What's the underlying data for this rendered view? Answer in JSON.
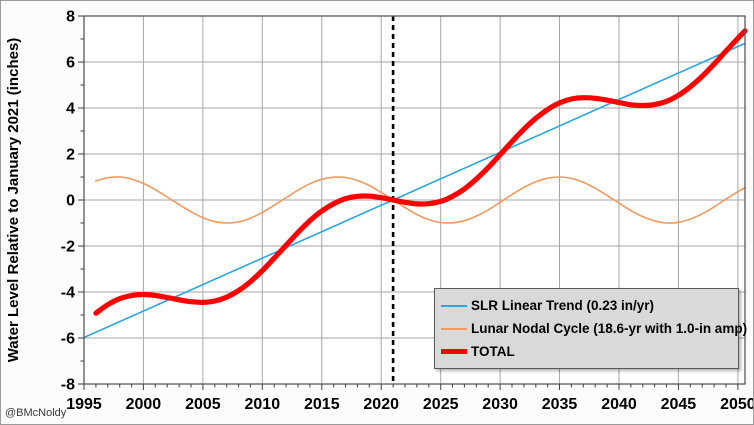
{
  "watermark": "@BMcNoldy",
  "colors": {
    "outer_background": "#fcfcfc",
    "plot_background": "#ffffff",
    "gridline": "#a6a6a6",
    "plot_border": "#595959",
    "tick": "#404040",
    "dashed_reference_line": "#000000",
    "legend_background": "#d9d9d9",
    "slr_trend_blue": "#2aa7e0",
    "nodal_cycle_orange": "#f29a5e",
    "total_red": "#ff0000"
  },
  "chart_data": {
    "type": "line",
    "title": "",
    "xlabel": "",
    "ylabel": "Water Level Relative to January 2021 (inches)",
    "xlim": [
      1995,
      2050.6
    ],
    "ylim": [
      -8,
      8
    ],
    "x_ticks": [
      1995,
      2000,
      2005,
      2010,
      2015,
      2020,
      2025,
      2030,
      2035,
      2040,
      2045,
      2050
    ],
    "y_ticks": [
      -8,
      -6,
      -4,
      -2,
      0,
      2,
      4,
      6,
      8
    ],
    "x_minor_step": 1,
    "y_minor_step": 1,
    "grid": true,
    "legend_position": "lower right",
    "annotations": [
      {
        "type": "vline",
        "x": 2021,
        "style": "dashed",
        "color": "#000000",
        "width": 2.6
      }
    ],
    "series": [
      {
        "name": "SLR Linear Trend (0.23 in/yr)",
        "color": "#2aa7e0",
        "width": 1.6,
        "x": [
          1995,
          2050.6
        ],
        "y": [
          -5.98,
          6.81
        ]
      },
      {
        "name": "Lunar Nodal Cycle (18.6-yr with 1.0-in amp)",
        "color": "#f29a5e",
        "width": 1.6,
        "x": [
          1996,
          1997,
          1998,
          1999,
          2000,
          2001,
          2002,
          2003,
          2004,
          2005,
          2006,
          2007,
          2008,
          2009,
          2010,
          2011,
          2012,
          2013,
          2014,
          2015,
          2016,
          2017,
          2018,
          2019,
          2020,
          2021,
          2022,
          2023,
          2024,
          2025,
          2026,
          2027,
          2028,
          2029,
          2030,
          2031,
          2032,
          2033,
          2034,
          2035,
          2036,
          2037,
          2038,
          2039,
          2040,
          2041,
          2042,
          2043,
          2044,
          2045,
          2046,
          2047,
          2048,
          2049,
          2050,
          2050.6
        ],
        "y": [
          0.83,
          0.97,
          1.0,
          0.91,
          0.72,
          0.45,
          0.13,
          -0.2,
          -0.51,
          -0.77,
          -0.94,
          -1.0,
          -0.95,
          -0.79,
          -0.54,
          -0.23,
          0.1,
          0.43,
          0.71,
          0.9,
          0.99,
          0.98,
          0.85,
          0.63,
          0.33,
          0.0,
          -0.33,
          -0.63,
          -0.85,
          -0.98,
          -0.99,
          -0.9,
          -0.7,
          -0.43,
          -0.1,
          0.24,
          0.55,
          0.79,
          0.95,
          1.0,
          0.94,
          0.77,
          0.51,
          0.2,
          -0.13,
          -0.46,
          -0.72,
          -0.91,
          -1.0,
          -0.97,
          -0.83,
          -0.6,
          -0.3,
          0.04,
          0.36,
          0.54
        ]
      },
      {
        "name": "TOTAL",
        "color": "#ff0000",
        "width": 5.2,
        "x": [
          1996,
          1997,
          1998,
          1999,
          2000,
          2001,
          2002,
          2003,
          2004,
          2005,
          2006,
          2007,
          2008,
          2009,
          2010,
          2011,
          2012,
          2013,
          2014,
          2015,
          2016,
          2017,
          2018,
          2019,
          2020,
          2021,
          2022,
          2023,
          2024,
          2025,
          2026,
          2027,
          2028,
          2029,
          2030,
          2031,
          2032,
          2033,
          2034,
          2035,
          2036,
          2037,
          2038,
          2039,
          2040,
          2041,
          2042,
          2043,
          2044,
          2045,
          2046,
          2047,
          2048,
          2049,
          2050,
          2050.6
        ],
        "y": [
          -4.92,
          -4.55,
          -4.29,
          -4.15,
          -4.11,
          -4.15,
          -4.24,
          -4.34,
          -4.42,
          -4.45,
          -4.39,
          -4.22,
          -3.94,
          -3.55,
          -3.07,
          -2.53,
          -1.97,
          -1.41,
          -0.9,
          -0.48,
          -0.16,
          0.06,
          0.16,
          0.17,
          0.1,
          0.0,
          -0.1,
          -0.17,
          -0.16,
          -0.06,
          0.16,
          0.48,
          0.91,
          1.41,
          1.97,
          2.54,
          3.08,
          3.55,
          3.94,
          4.22,
          4.39,
          4.45,
          4.42,
          4.34,
          4.24,
          4.14,
          4.11,
          4.15,
          4.29,
          4.55,
          4.92,
          5.38,
          5.91,
          6.48,
          7.03,
          7.35
        ]
      }
    ]
  }
}
